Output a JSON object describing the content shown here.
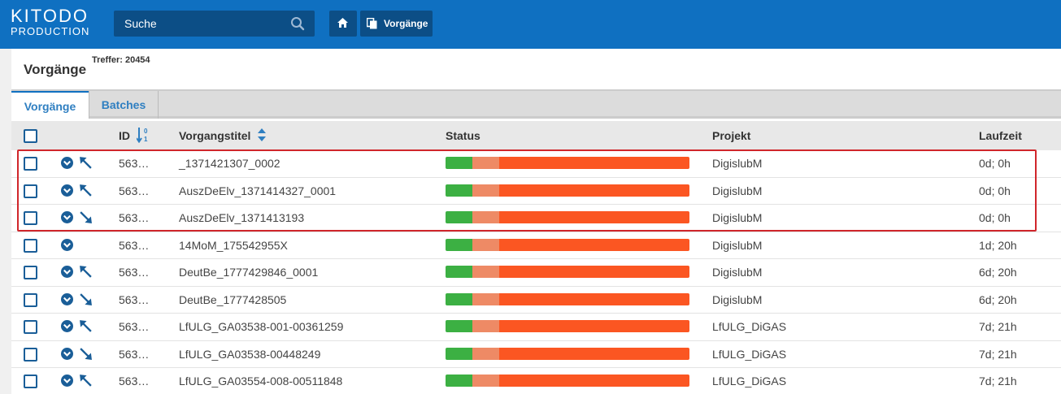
{
  "app": {
    "logo_line1": "KITODO",
    "logo_line2": "PRODUCTION"
  },
  "search": {
    "label": "Suche"
  },
  "breadcrumb": {
    "current": "Vorgänge"
  },
  "page": {
    "title": "Vorgänge",
    "hits": "Treffer: 20454"
  },
  "tabs": [
    {
      "label": "Vorgänge",
      "active": true
    },
    {
      "label": "Batches",
      "active": false
    }
  ],
  "table": {
    "headers": {
      "id": "ID",
      "title": "Vorgangstitel",
      "status": "Status",
      "project": "Projekt",
      "duration": "Laufzeit"
    },
    "status_colors": {
      "done": "#3cb043",
      "inwork": "#ee8a65",
      "open": "#fb5622"
    },
    "rows": [
      {
        "id": "563…",
        "title": "_1371421307_0002",
        "project": "DigislubM",
        "duration": "0d; 0h",
        "arrow": "up",
        "status": [
          0.11,
          0.11,
          0.78
        ]
      },
      {
        "id": "563…",
        "title": "AuszDeElv_1371414327_0001",
        "project": "DigislubM",
        "duration": "0d; 0h",
        "arrow": "up",
        "status": [
          0.11,
          0.11,
          0.78
        ]
      },
      {
        "id": "563…",
        "title": "AuszDeElv_1371413193",
        "project": "DigislubM",
        "duration": "0d; 0h",
        "arrow": "down",
        "status": [
          0.11,
          0.11,
          0.78
        ]
      },
      {
        "id": "563…",
        "title": "14MoM_175542955X",
        "project": "DigislubM",
        "duration": "1d; 20h",
        "arrow": "none",
        "status": [
          0.11,
          0.11,
          0.78
        ]
      },
      {
        "id": "563…",
        "title": "DeutBe_1777429846_0001",
        "project": "DigislubM",
        "duration": "6d; 20h",
        "arrow": "up",
        "status": [
          0.11,
          0.11,
          0.78
        ]
      },
      {
        "id": "563…",
        "title": "DeutBe_1777428505",
        "project": "DigislubM",
        "duration": "6d; 20h",
        "arrow": "down",
        "status": [
          0.11,
          0.11,
          0.78
        ]
      },
      {
        "id": "563…",
        "title": "LfULG_GA03538-001-00361259",
        "project": "LfULG_DiGAS",
        "duration": "7d; 21h",
        "arrow": "up",
        "status": [
          0.11,
          0.11,
          0.78
        ]
      },
      {
        "id": "563…",
        "title": "LfULG_GA03538-00448249",
        "project": "LfULG_DiGAS",
        "duration": "7d; 21h",
        "arrow": "down",
        "status": [
          0.11,
          0.11,
          0.78
        ]
      },
      {
        "id": "563…",
        "title": "LfULG_GA03554-008-00511848",
        "project": "LfULG_DiGAS",
        "duration": "7d; 21h",
        "arrow": "up",
        "status": [
          0.11,
          0.11,
          0.78
        ]
      }
    ]
  }
}
